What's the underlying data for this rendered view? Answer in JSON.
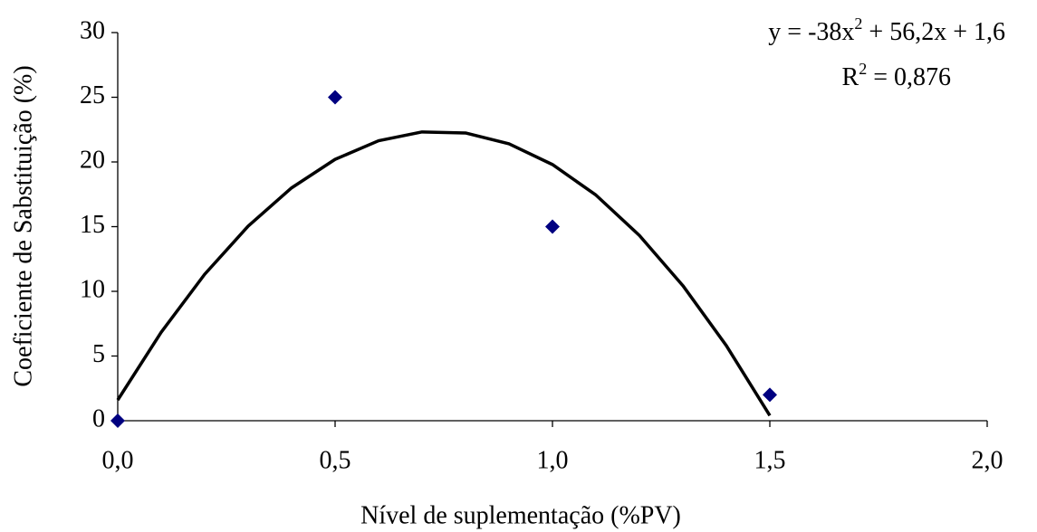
{
  "chart_data": {
    "type": "scatter",
    "xlabel": "Nível de suplementação (%PV)",
    "ylabel": "Coeficiente de Sabstituição (%)",
    "annotations": [
      [
        "y = -38x",
        "2",
        " + 56,2x + 1,6"
      ],
      [
        "R",
        "2",
        " = 0,876"
      ]
    ],
    "series": [
      {
        "x": [
          0,
          0.5,
          1.0,
          1.5
        ],
        "values": [
          0,
          25,
          15,
          2
        ],
        "color": "#000080",
        "marker": "diamond"
      },
      {
        "x": [
          0,
          0.1,
          0.2,
          0.3,
          0.4,
          0.5,
          0.6,
          0.7,
          0.8,
          0.9,
          1.0,
          1.1,
          1.2,
          1.3,
          1.4,
          1.5
        ],
        "values": [
          1.6,
          6.84,
          11.32,
          15.04,
          18.0,
          20.2,
          21.64,
          22.32,
          22.24,
          21.4,
          19.8,
          17.44,
          14.32,
          10.44,
          5.8,
          0.4
        ],
        "color": "#000000",
        "marker": "line"
      }
    ],
    "xlim": [
      0,
      2.0
    ],
    "xticks": [
      {
        "value": 0,
        "label": "0,0"
      },
      {
        "value": 0.5,
        "label": "0,5"
      },
      {
        "value": 1.0,
        "label": "1,0"
      },
      {
        "value": 1.5,
        "label": "1,5"
      },
      {
        "value": 2.0,
        "label": "2,0"
      }
    ],
    "ylim": [
      0,
      30
    ],
    "yticks": [
      0,
      5,
      10,
      15,
      20,
      25,
      30
    ],
    "grid": false
  }
}
